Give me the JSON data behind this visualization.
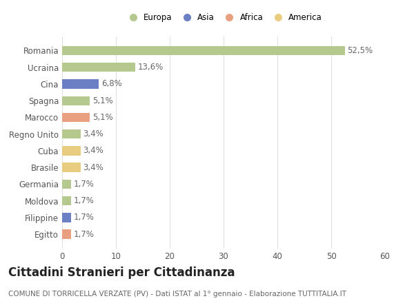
{
  "categories": [
    "Romania",
    "Ucraina",
    "Cina",
    "Spagna",
    "Marocco",
    "Regno Unito",
    "Cuba",
    "Brasile",
    "Germania",
    "Moldova",
    "Filippine",
    "Egitto"
  ],
  "values": [
    52.5,
    13.6,
    6.8,
    5.1,
    5.1,
    3.4,
    3.4,
    3.4,
    1.7,
    1.7,
    1.7,
    1.7
  ],
  "labels": [
    "52,5%",
    "13,6%",
    "6,8%",
    "5,1%",
    "5,1%",
    "3,4%",
    "3,4%",
    "3,4%",
    "1,7%",
    "1,7%",
    "1,7%",
    "1,7%"
  ],
  "bar_colors": [
    "#b5c98e",
    "#b5c98e",
    "#6b7fc4",
    "#b5c98e",
    "#e8a080",
    "#b5c98e",
    "#e8cc80",
    "#e8cc80",
    "#b5c98e",
    "#b5c98e",
    "#6b7fc4",
    "#e8a080"
  ],
  "legend_labels": [
    "Europa",
    "Asia",
    "Africa",
    "America"
  ],
  "legend_colors": [
    "#b5c98e",
    "#6b7fc4",
    "#e8a080",
    "#e8cc80"
  ],
  "title": "Cittadini Stranieri per Cittadinanza",
  "subtitle": "COMUNE DI TORRICELLA VERZATE (PV) - Dati ISTAT al 1° gennaio - Elaborazione TUTTITALIA.IT",
  "xlim": [
    0,
    60
  ],
  "xticks": [
    0,
    10,
    20,
    30,
    40,
    50,
    60
  ],
  "background_color": "#ffffff",
  "grid_color": "#e0e0e0",
  "bar_height": 0.55,
  "label_fontsize": 8.5,
  "title_fontsize": 12,
  "subtitle_fontsize": 7.5,
  "tick_fontsize": 8.5
}
